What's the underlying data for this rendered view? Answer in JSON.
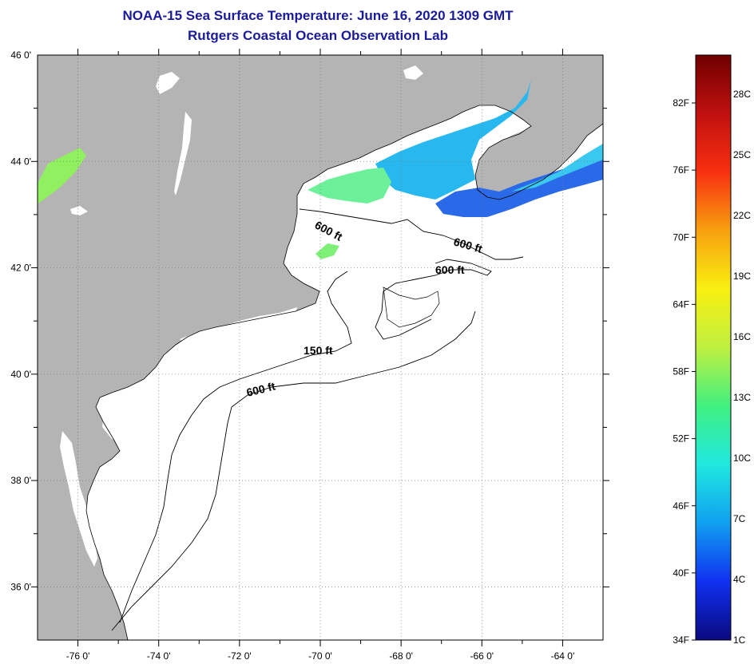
{
  "title": "NOAA-15 Sea Surface Temperature:  June 16, 2020 1309 GMT",
  "subtitle": "Rutgers Coastal Ocean Observation Lab",
  "map": {
    "lon_range": [
      -77,
      -63
    ],
    "lat_range": [
      35,
      46
    ],
    "lon_ticks": [
      {
        "value": -76,
        "label": "-76 0'"
      },
      {
        "value": -74,
        "label": "-74 0'"
      },
      {
        "value": -72,
        "label": "-72 0'"
      },
      {
        "value": -70,
        "label": "-70 0'"
      },
      {
        "value": -68,
        "label": "-68 0'"
      },
      {
        "value": -66,
        "label": "-66 0'"
      },
      {
        "value": -64,
        "label": "-64 0'"
      }
    ],
    "lat_ticks": [
      {
        "value": 46,
        "label": "46 0'"
      },
      {
        "value": 44,
        "label": "44 0'"
      },
      {
        "value": 42,
        "label": "42 0'"
      },
      {
        "value": 40,
        "label": "40 0'"
      },
      {
        "value": 38,
        "label": "38 0'"
      },
      {
        "value": 36,
        "label": "36 0'"
      }
    ],
    "grid": "dotted",
    "contour_labels": [
      {
        "text": "600 ft"
      },
      {
        "text": "600 ft"
      },
      {
        "text": "600 ft"
      },
      {
        "text": "150 ft"
      },
      {
        "text": "600 ft"
      }
    ],
    "colors": {
      "land": "#b4b4b4",
      "ocean_no_data": "#ffffff",
      "cold": "#2050e0",
      "mid": "#20c0f0",
      "warm": "#60f080"
    }
  },
  "colorbar": {
    "left_labels": [
      "82F",
      "76F",
      "70F",
      "64F",
      "58F",
      "52F",
      "46F",
      "40F",
      "34F"
    ],
    "right_labels": [
      "28C",
      "25C",
      "22C",
      "19C",
      "16C",
      "13C",
      "10C",
      "7C",
      "4C",
      "1C"
    ],
    "gradient": [
      "#0a0a80",
      "#1030f0",
      "#10a0f0",
      "#20e8e0",
      "#40f080",
      "#c0f040",
      "#f8f010",
      "#f8a010",
      "#f83010",
      "#c01010",
      "#700000"
    ]
  }
}
